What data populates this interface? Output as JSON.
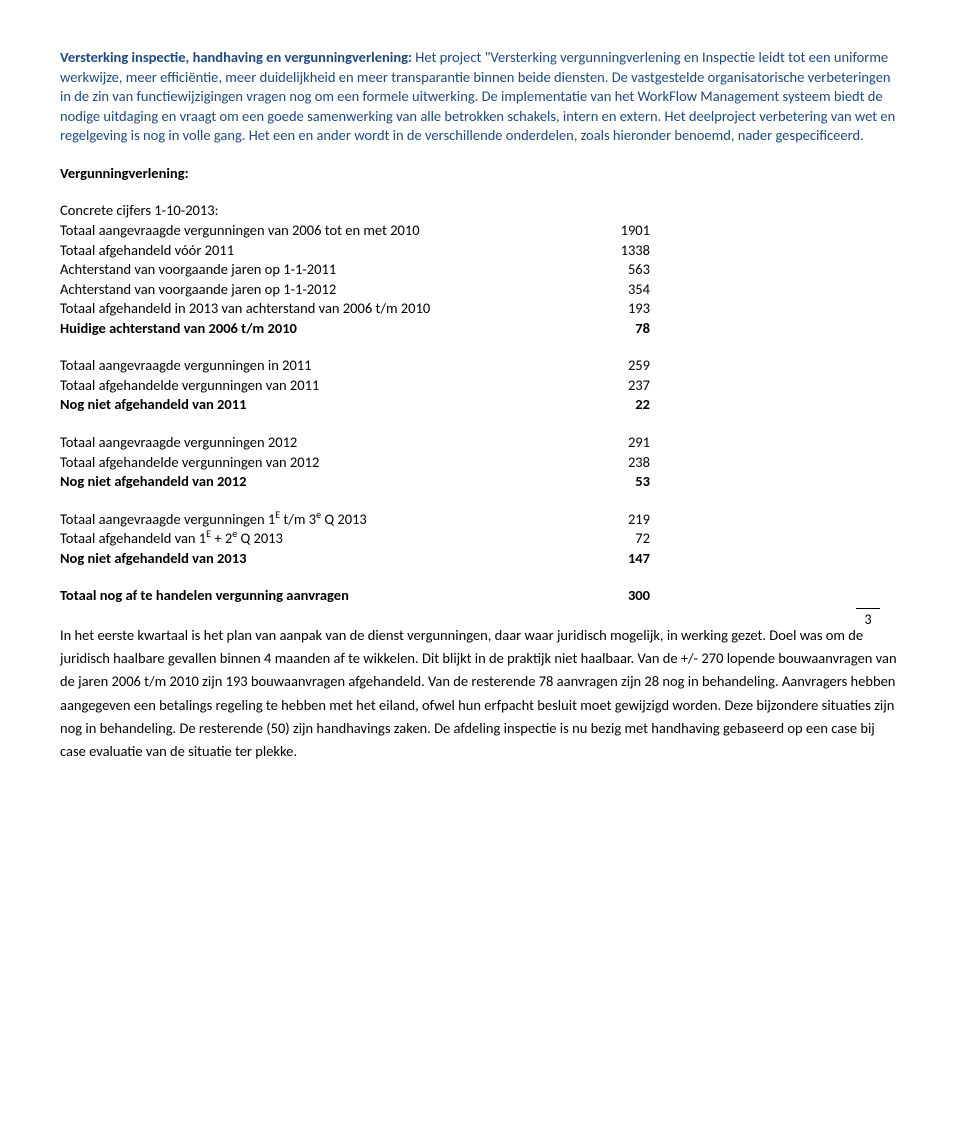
{
  "intro": {
    "lead_bold": "Versterking inspectie, handhaving en vergunningverlening: ",
    "text": "Het project \"Versterking vergunningverlening en Inspectie leidt tot een uniforme werkwijze, meer efficiëntie, meer duidelijkheid en meer transparantie binnen beide diensten. De vastgestelde organisatorische verbeteringen in de zin van functiewijzigingen vragen nog om een formele uitwerking. De implementatie van het WorkFlow Management systeem biedt de nodige uitdaging en vraagt om een goede samenwerking van alle betrokken schakels, intern en extern. Het deelproject verbetering van wet en regelgeving is nog in volle gang. Het een en ander wordt in de verschillende onderdelen, zoals hieronder benoemd, nader gespecificeerd."
  },
  "section_heading": "Vergunningverlening:",
  "block1_head": "Concrete cijfers 1-10-2013:",
  "block1": [
    {
      "label": "Totaal aangevraagde vergunningen van 2006 tot en met 2010",
      "val": "1901",
      "bold": false
    },
    {
      "label": "Totaal afgehandeld vóór 2011",
      "val": "1338",
      "bold": false
    },
    {
      "label": "Achterstand van voorgaande jaren op 1-1-2011",
      "val": "563",
      "bold": false
    },
    {
      "label": "Achterstand van voorgaande jaren op 1-1-2012",
      "val": "354",
      "bold": false
    },
    {
      "label": "Totaal afgehandeld in 2013 van achterstand van 2006 t/m 2010",
      "val": "193",
      "bold": false
    },
    {
      "label": "Huidige achterstand van 2006 t/m 2010",
      "val": "78",
      "bold": true
    }
  ],
  "block2": [
    {
      "label": "Totaal aangevraagde vergunningen in 2011",
      "val": "259",
      "bold": false
    },
    {
      "label": "Totaal afgehandelde vergunningen van 2011",
      "val": "237",
      "bold": false
    },
    {
      "label": "Nog niet afgehandeld van 2011",
      "val": "22",
      "bold": true
    }
  ],
  "block3": [
    {
      "label": "Totaal aangevraagde vergunningen 2012",
      "val": "291",
      "bold": false
    },
    {
      "label": "Totaal afgehandelde vergunningen van 2012",
      "val": "238",
      "bold": false
    },
    {
      "label": "Nog niet afgehandeld van 2012",
      "val": "53",
      "bold": true
    }
  ],
  "block4": [
    {
      "label_html": "Totaal aangevraagde vergunningen 1<sup>E</sup> t/m 3<sup>e</sup>  Q 2013",
      "val": "219",
      "bold": false
    },
    {
      "label_html": "Totaal afgehandeld van 1<sup>E</sup> + 2<sup>e</sup> Q 2013",
      "val": "72",
      "bold": false
    },
    {
      "label_html": "Nog niet afgehandeld van 2013",
      "val": "147",
      "bold": true
    }
  ],
  "total_row": {
    "label": "Totaal nog af te handelen vergunning aanvragen",
    "val": "300"
  },
  "closing": "In het eerste kwartaal is het plan van aanpak van de dienst vergunningen, daar waar juridisch mogelijk, in werking gezet. Doel was om de juridisch haalbare gevallen binnen 4 maanden af te wikkelen. Dit blijkt in de praktijk niet haalbaar. Van de +/- 270 lopende bouwaanvragen van de jaren 2006 t/m 2010 zijn 193 bouwaanvragen afgehandeld. Van de resterende 78 aanvragen zijn 28 nog in behandeling. Aanvragers hebben aangegeven een betalings regeling te hebben met het eiland, ofwel hun erfpacht besluit moet gewijzigd worden. Deze bijzondere situaties zijn nog in behandeling. De resterende (50) zijn handhavings zaken. De afdeling inspectie is nu bezig met handhaving gebaseerd op een case bij case evaluatie van de situatie ter plekke.",
  "page_number": "3"
}
